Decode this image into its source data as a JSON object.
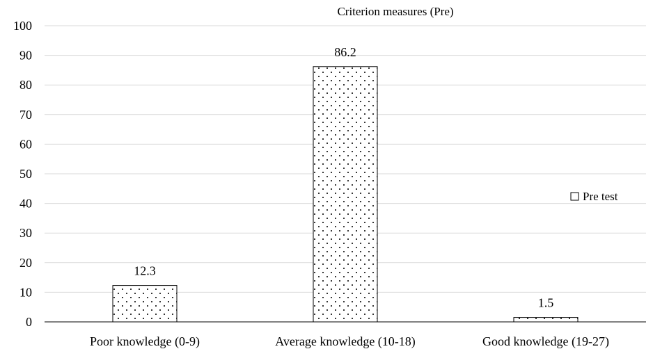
{
  "chart_data": {
    "type": "bar",
    "title": "Criterion measures (Pre)",
    "xlabel": "",
    "ylabel": "",
    "categories": [
      "Poor knowledge (0-9)",
      "Average knowledge (10-18)",
      "Good knowledge (19-27)"
    ],
    "series": [
      {
        "name": "Pre test",
        "values": [
          12.3,
          86.2,
          1.5
        ]
      }
    ],
    "data_labels": [
      "12.3",
      "86.2",
      "1.5"
    ],
    "ylim": [
      0,
      100
    ],
    "yticks": [
      0,
      10,
      20,
      30,
      40,
      50,
      60,
      70,
      80,
      90,
      100
    ],
    "ytick_labels": [
      "0",
      "10",
      "20",
      "30",
      "40",
      "50",
      "60",
      "70",
      "80",
      "90",
      "100"
    ],
    "grid": true,
    "legend_position": "right",
    "bar_fill": "dotted pattern",
    "colors": {
      "bar_edge": "#000000",
      "grid": "#d9d9d9",
      "axis": "#000000",
      "dots": "#000000"
    }
  }
}
